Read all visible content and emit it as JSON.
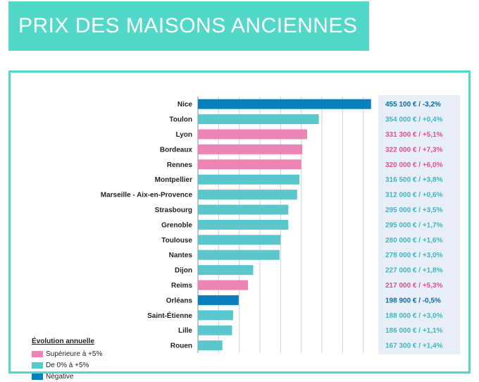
{
  "title": "PRIX DES MAISONS ANCIENNES",
  "legend": {
    "title": "Évolution annuelle",
    "items": [
      {
        "label": "Supérieure à +5%",
        "color": "#ec84b6"
      },
      {
        "label": "De 0% à +5%",
        "color": "#5bc6cc"
      },
      {
        "label": "Négative",
        "color": "#0a7fbd"
      }
    ]
  },
  "chart_data": {
    "type": "bar",
    "orientation": "horizontal",
    "categories": [
      "Nice",
      "Toulon",
      "Lyon",
      "Bordeaux",
      "Rennes",
      "Montpellier",
      "Marseille - Aix-en-Provence",
      "Strasbourg",
      "Grenoble",
      "Toulouse",
      "Nantes",
      "Dijon",
      "Reims",
      "Orléans",
      "Saint-Étienne",
      "Lille",
      "Rouen"
    ],
    "values": [
      455100,
      354000,
      331300,
      322000,
      320000,
      316500,
      312000,
      295000,
      295000,
      280000,
      278000,
      227000,
      217000,
      198900,
      188000,
      186000,
      167300
    ],
    "value_labels": [
      "455 100 €",
      "354 000 €",
      "331 300 €",
      "322 000 €",
      "320 000 €",
      "316 500 €",
      "312 000 €",
      "295 000 €",
      "295 000 €",
      "280 000 €",
      "278 000 €",
      "227 000 €",
      "217 000 €",
      "198 900 €",
      "188 000 €",
      "186 000 €",
      "167 300 €"
    ],
    "changes": [
      "/ -3,2%",
      "/ +0,4%",
      "/ +5,1%",
      "/ +7,3%",
      "/ +6,0%",
      "/ +3,8%",
      "/ +0,6%",
      "/ +3,5%",
      "/ +1,7%",
      "/ +1,6%",
      "/ +3,0%",
      "/ +1,8%",
      "/ +5,3%",
      "/ -0,5%",
      "/ +3,0%",
      "/ +1,1%",
      "/ +1,4%"
    ],
    "groups": [
      "neg",
      "mid",
      "high",
      "high",
      "high",
      "mid",
      "mid",
      "mid",
      "mid",
      "mid",
      "mid",
      "mid",
      "high",
      "neg",
      "mid",
      "mid",
      "mid"
    ],
    "colors": {
      "high": "#ec84b6",
      "mid": "#5bc6cc",
      "neg": "#0a7fbd"
    },
    "label_colors": {
      "high": "#e0508f",
      "mid": "#3fb6bf",
      "neg": "#0a6aa3"
    },
    "xlim": [
      120000,
      480000
    ],
    "grid": true,
    "legend_position": "bottom-left"
  }
}
